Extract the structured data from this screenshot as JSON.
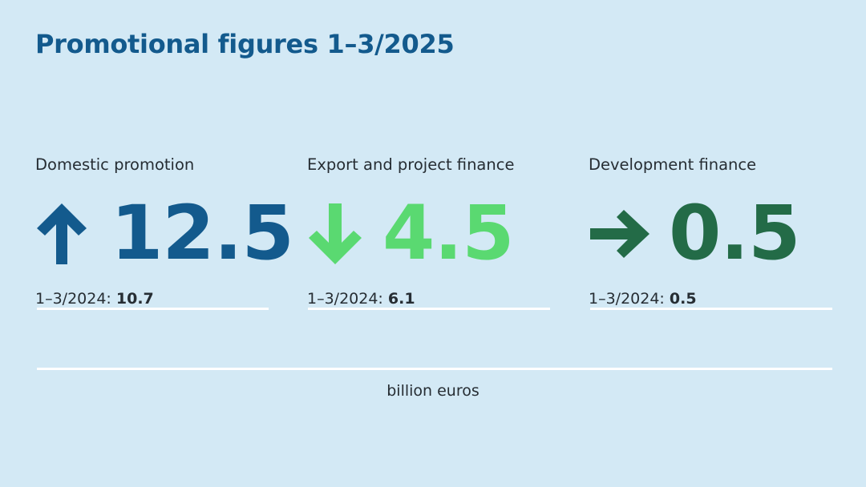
{
  "title": "Promotional figures 1–3/2025",
  "metrics": [
    {
      "label": "Domestic promotion",
      "value": "12.5",
      "trend": "up",
      "arrow_icon": "arrow-up-icon",
      "color": "#135a8d",
      "prev_label": "1–3/2024:",
      "prev_value": "10.7"
    },
    {
      "label": "Export and project finance",
      "value": "4.5",
      "trend": "down",
      "arrow_icon": "arrow-down-icon",
      "color": "#5ad971",
      "prev_label": "1–3/2024:",
      "prev_value": "6.1"
    },
    {
      "label": "Development finance",
      "value": "0.5",
      "trend": "flat",
      "arrow_icon": "arrow-right-icon",
      "color": "#236b47",
      "prev_label": "1–3/2024:",
      "prev_value": "0.5"
    }
  ],
  "unit": "billion euros",
  "colors": {
    "background": "#d3e9f5",
    "title": "#135a8d",
    "text": "#262d33",
    "rule": "#ffffff"
  }
}
